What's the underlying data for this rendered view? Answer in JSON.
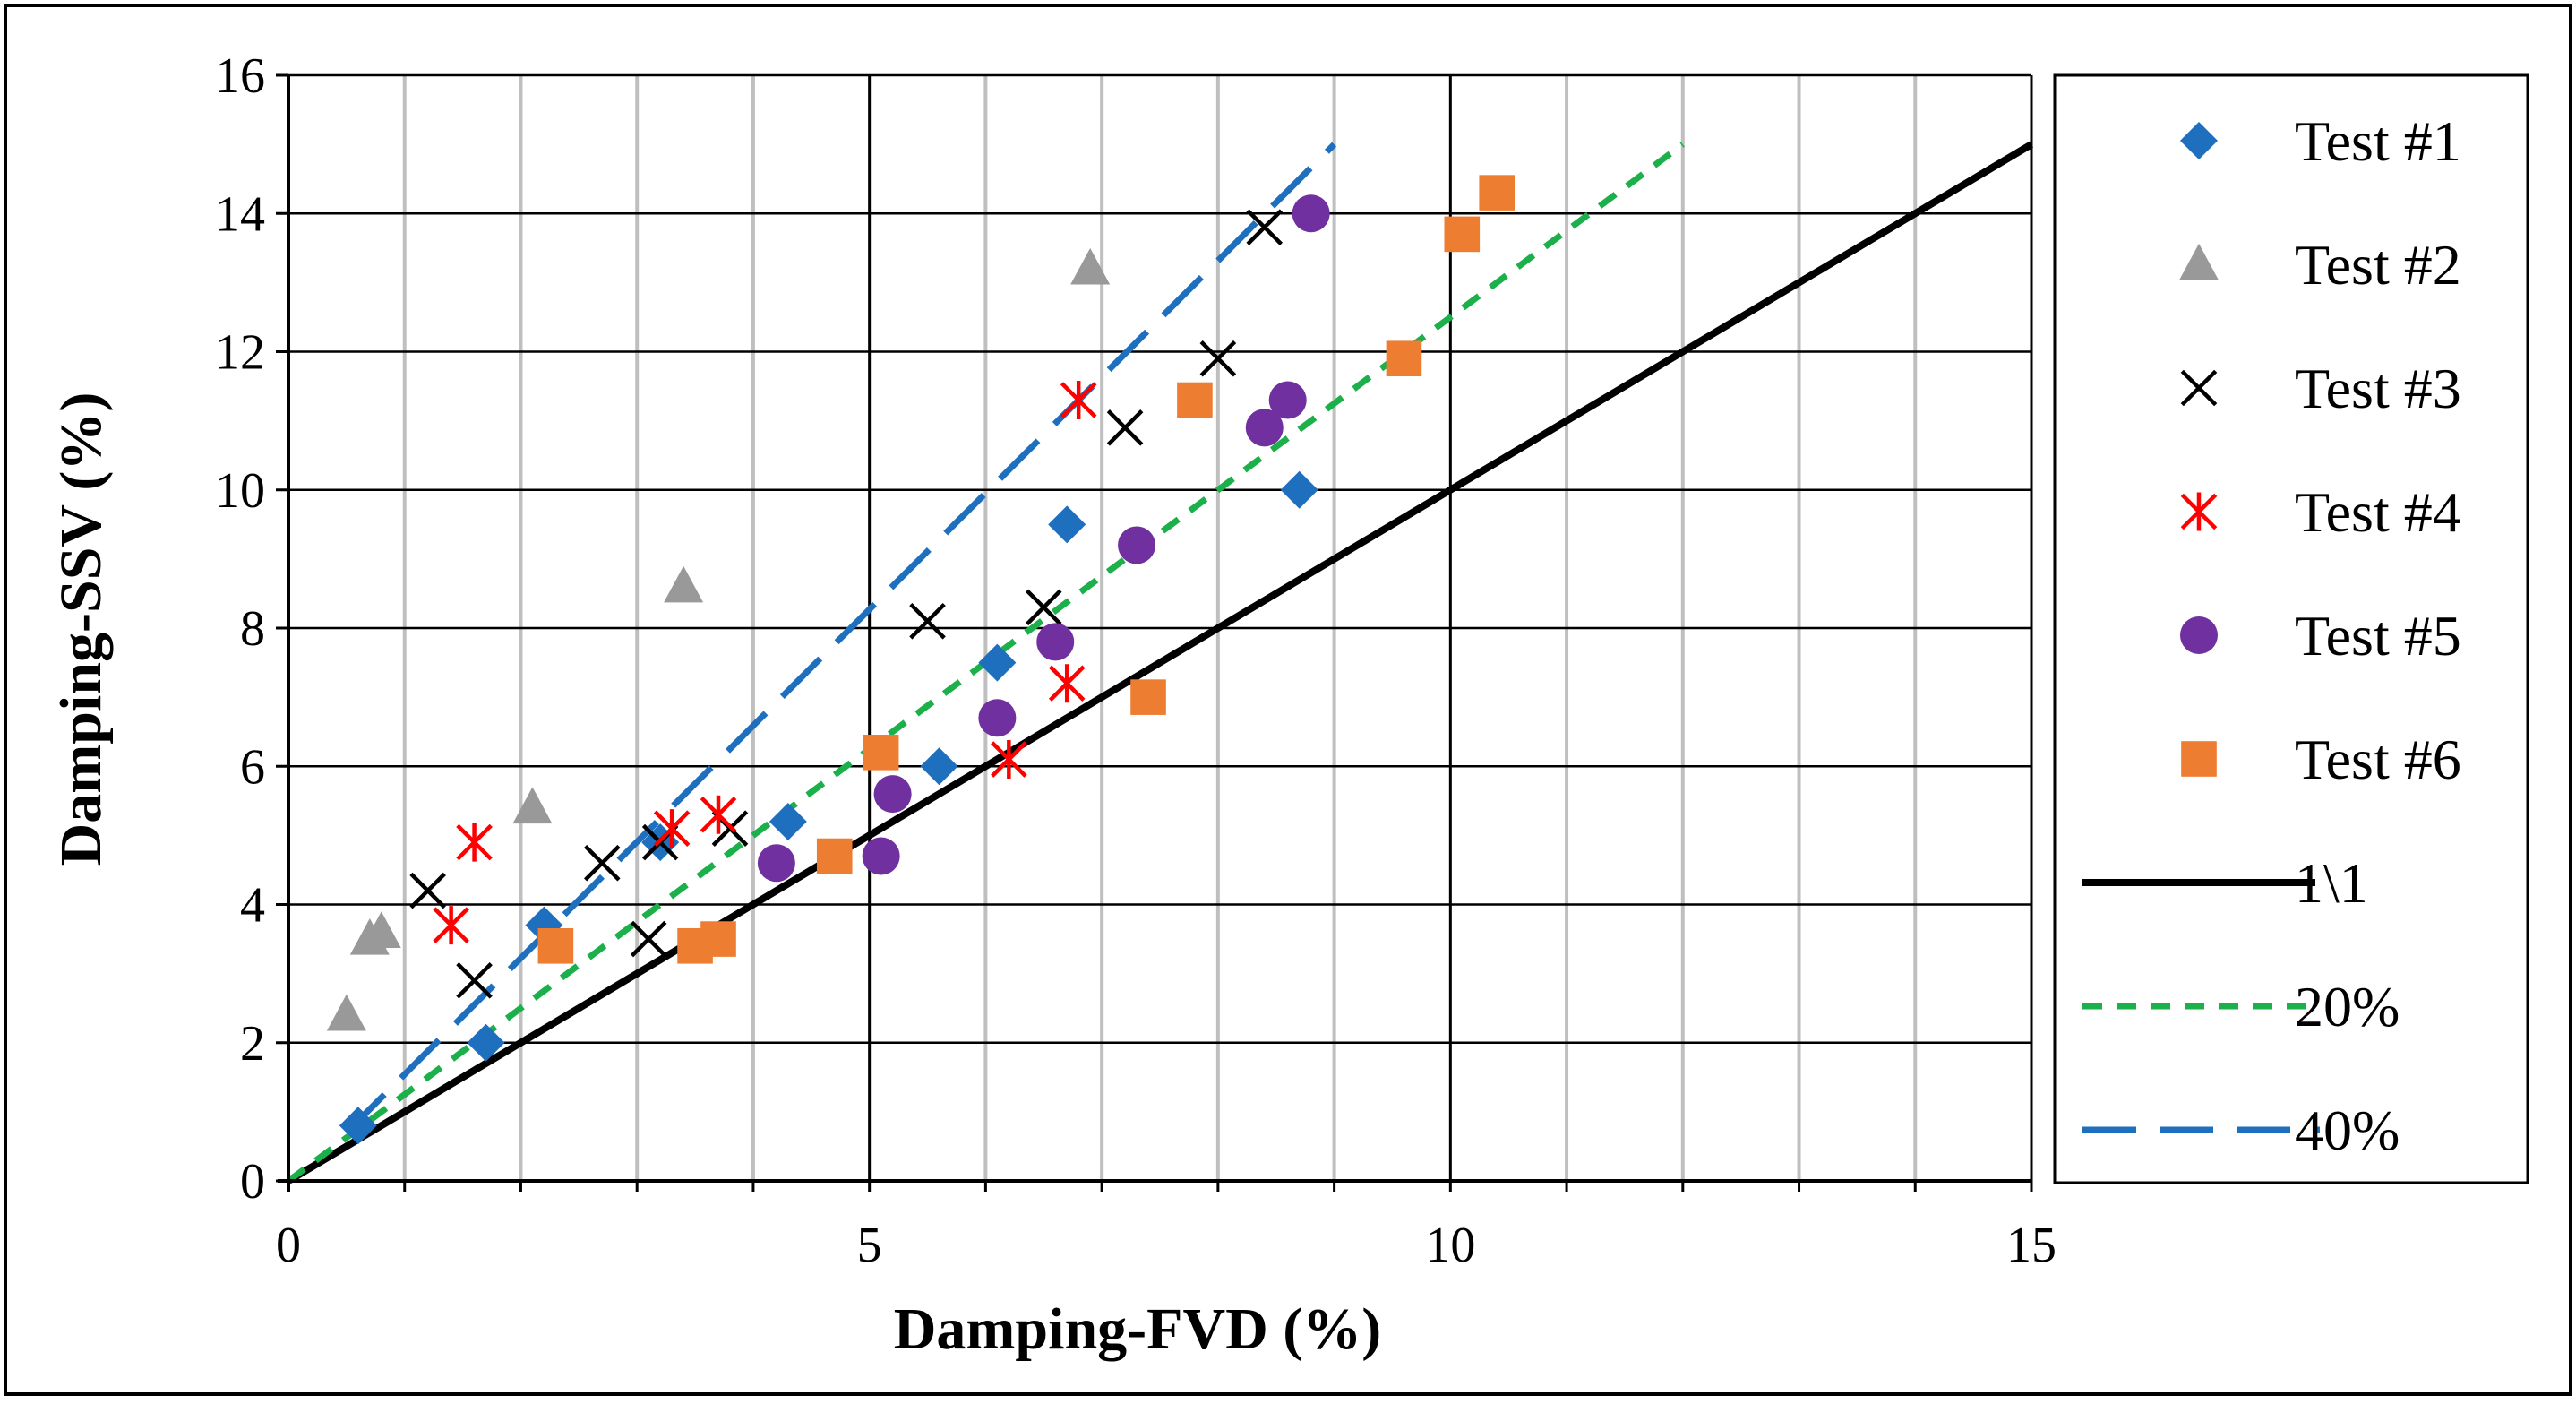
{
  "chart_data": {
    "type": "scatter",
    "title": "",
    "xlabel": "Damping-FVD (%)",
    "ylabel": "Damping-SSV (%)",
    "xlim": [
      0,
      15
    ],
    "ylim": [
      0,
      16
    ],
    "x_ticks": [
      0,
      5,
      10,
      15
    ],
    "y_ticks": [
      0,
      2,
      4,
      6,
      8,
      10,
      12,
      14,
      16
    ],
    "x_minor_step": 1,
    "grid": true,
    "legend_position": "right",
    "series": [
      {
        "name": "Test #1",
        "marker": "diamond",
        "color": "#1F6FBF",
        "points": [
          [
            0.6,
            0.8
          ],
          [
            1.7,
            2.0
          ],
          [
            2.2,
            3.7
          ],
          [
            3.2,
            4.9
          ],
          [
            4.3,
            5.2
          ],
          [
            5.6,
            6.0
          ],
          [
            6.1,
            7.5
          ],
          [
            6.7,
            9.5
          ],
          [
            8.7,
            10.0
          ]
        ]
      },
      {
        "name": "Test #2",
        "marker": "triangle",
        "color": "#999999",
        "points": [
          [
            0.5,
            2.4
          ],
          [
            0.7,
            3.5
          ],
          [
            0.8,
            3.6
          ],
          [
            2.1,
            5.4
          ],
          [
            3.4,
            8.6
          ],
          [
            6.9,
            13.2
          ]
        ]
      },
      {
        "name": "Test #3",
        "marker": "x",
        "color": "#000000",
        "points": [
          [
            1.2,
            4.2
          ],
          [
            1.6,
            2.9
          ],
          [
            2.7,
            4.6
          ],
          [
            3.1,
            3.5
          ],
          [
            3.2,
            4.9
          ],
          [
            3.8,
            5.1
          ],
          [
            5.5,
            8.1
          ],
          [
            6.5,
            8.3
          ],
          [
            7.2,
            10.9
          ],
          [
            8.0,
            11.9
          ],
          [
            8.4,
            13.8
          ]
        ]
      },
      {
        "name": "Test #4",
        "marker": "asterisk",
        "color": "#FF0000",
        "points": [
          [
            1.4,
            3.7
          ],
          [
            1.6,
            4.9
          ],
          [
            3.3,
            5.1
          ],
          [
            3.7,
            5.3
          ],
          [
            6.2,
            6.1
          ],
          [
            6.7,
            7.2
          ],
          [
            6.8,
            11.3
          ]
        ]
      },
      {
        "name": "Test #5",
        "marker": "circle",
        "color": "#7030A0",
        "points": [
          [
            4.2,
            4.6
          ],
          [
            5.1,
            4.7
          ],
          [
            5.2,
            5.6
          ],
          [
            6.1,
            6.7
          ],
          [
            6.6,
            7.8
          ],
          [
            7.3,
            9.2
          ],
          [
            8.4,
            10.9
          ],
          [
            8.6,
            11.3
          ],
          [
            8.8,
            14.0
          ]
        ]
      },
      {
        "name": "Test #6",
        "marker": "square",
        "color": "#ED7D31",
        "points": [
          [
            2.3,
            3.4
          ],
          [
            3.5,
            3.4
          ],
          [
            3.7,
            3.5
          ],
          [
            4.7,
            4.7
          ],
          [
            5.1,
            6.2
          ],
          [
            7.4,
            7.0
          ],
          [
            7.8,
            11.3
          ],
          [
            9.6,
            11.9
          ],
          [
            10.1,
            13.7
          ],
          [
            10.4,
            14.3
          ]
        ]
      }
    ],
    "lines": [
      {
        "name": "1\\1",
        "style": "solid",
        "color": "#000000",
        "points": [
          [
            0,
            0
          ],
          [
            15,
            15
          ]
        ]
      },
      {
        "name": "20%",
        "style": "short-dash",
        "color": "#1CB04B",
        "points": [
          [
            0,
            0
          ],
          [
            12,
            15
          ]
        ]
      },
      {
        "name": "40%",
        "style": "long-dash",
        "color": "#1F6FBF",
        "points": [
          [
            0.5,
            0.7
          ],
          [
            9,
            15
          ]
        ]
      }
    ]
  }
}
